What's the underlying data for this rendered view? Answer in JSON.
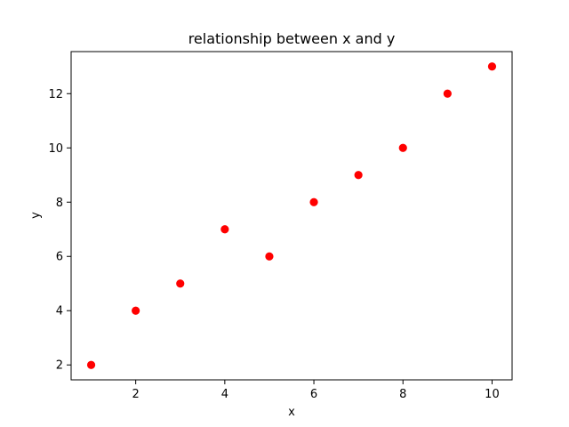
{
  "chart_data": {
    "type": "scatter",
    "title": "relationship between x and y",
    "xlabel": "x",
    "ylabel": "y",
    "x": [
      1,
      2,
      3,
      4,
      5,
      6,
      7,
      8,
      9,
      10
    ],
    "y": [
      2,
      4,
      5,
      7,
      6,
      8,
      9,
      10,
      12,
      13
    ],
    "xlim": [
      0.55,
      10.45
    ],
    "ylim": [
      1.45,
      13.55
    ],
    "xticks": [
      2,
      4,
      6,
      8,
      10
    ],
    "yticks": [
      2,
      4,
      6,
      8,
      10,
      12
    ],
    "xtick_labels": [
      "2",
      "4",
      "6",
      "8",
      "10"
    ],
    "ytick_labels": [
      "2",
      "4",
      "6",
      "8",
      "10",
      "12"
    ],
    "marker_color": "#ff0000",
    "grid": false,
    "legend": false
  }
}
